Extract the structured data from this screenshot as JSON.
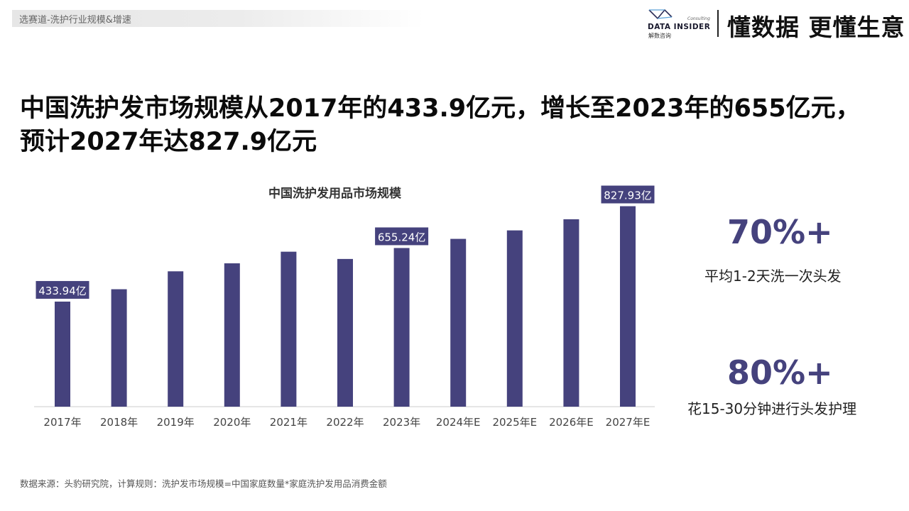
{
  "header": {
    "breadcrumb": "选赛道-洗护行业规模&增速",
    "logo": {
      "text": "DATA INSIDER",
      "sub": "解数咨询",
      "consulting": "Consulting"
    },
    "slogan": "懂数据 更懂生意"
  },
  "headline": {
    "line1": "中国洗护发市场规模从2017年的433.9亿元，增长至2023年的655亿元，",
    "line2": "预计2027年达827.9亿元"
  },
  "chart_data": {
    "type": "bar",
    "title": "中国洗护发用品市场规模",
    "categories": [
      "2017年",
      "2018年",
      "2019年",
      "2020年",
      "2021年",
      "2022年",
      "2023年",
      "2024年E",
      "2025年E",
      "2026年E",
      "2027年E"
    ],
    "values": [
      433.94,
      485,
      559,
      592,
      640,
      610,
      655.24,
      693,
      728,
      774,
      827.93
    ],
    "data_labels": [
      {
        "index": 0,
        "text": "433.94亿"
      },
      {
        "index": 6,
        "text": "655.24亿"
      },
      {
        "index": 10,
        "text": "827.93亿"
      }
    ],
    "xlabel": "",
    "ylabel": "",
    "ylim": [
      0,
      850
    ],
    "grid": false,
    "legend": "none",
    "colors": {
      "bar": "#45427d",
      "label_bg": "#45427d",
      "label_text": "#ffffff",
      "axis": "#cccccc",
      "tick": "#444444"
    }
  },
  "stats": [
    {
      "value": "70%+",
      "label": "平均1-2天洗一次头发"
    },
    {
      "value": "80%+",
      "label": "花15-30分钟进行头发护理"
    }
  ],
  "footer": {
    "source": "数据来源：头豹研究院，计算规则：洗护发市场规模=中国家庭数量*家庭洗护发用品消费金额"
  }
}
